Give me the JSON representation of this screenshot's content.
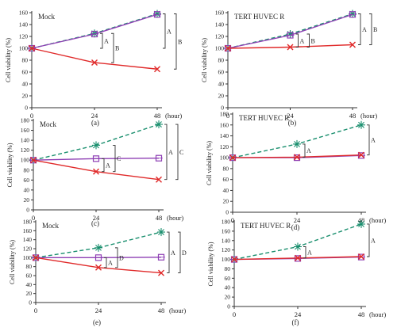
{
  "chart_data": [
    {
      "type": "line",
      "panel_letter": "(a)",
      "title": "Mock",
      "ylabel": "Cell viability (%)",
      "x_unit": "(hour)",
      "x": [
        0,
        24,
        48
      ],
      "ylim": [
        0,
        160
      ],
      "yticks": [
        0,
        20,
        40,
        60,
        80,
        100,
        120,
        140,
        160
      ],
      "series": [
        {
          "color": "#1a8f6e",
          "dash": "5,3",
          "marker": "star",
          "values": [
            100,
            125,
            158
          ]
        },
        {
          "color": "#8e3fb4",
          "dash": "",
          "marker": "square",
          "values": [
            100,
            124,
            157
          ]
        },
        {
          "color": "#e02a2a",
          "dash": "",
          "marker": "x",
          "values": [
            100,
            76,
            65
          ]
        }
      ],
      "annotations": [
        {
          "label": "A",
          "at_x": 24,
          "from": 125,
          "to": 100
        },
        {
          "label": "B",
          "at_x": 24,
          "from": 125,
          "to": 76
        },
        {
          "label": "A",
          "at_x": 48,
          "from": 158,
          "to": 100
        },
        {
          "label": "B",
          "at_x": 48,
          "from": 158,
          "to": 65
        }
      ]
    },
    {
      "type": "line",
      "panel_letter": "(b)",
      "title": "TERT HUVEC R",
      "ylabel": "Cell viability (%)",
      "x_unit": "(hour)",
      "x": [
        0,
        24,
        48
      ],
      "ylim": [
        0,
        160
      ],
      "yticks": [
        0,
        20,
        40,
        60,
        80,
        100,
        120,
        140,
        160
      ],
      "series": [
        {
          "color": "#1a8f6e",
          "dash": "5,3",
          "marker": "star",
          "values": [
            100,
            124,
            158
          ]
        },
        {
          "color": "#8e3fb4",
          "dash": "",
          "marker": "square",
          "values": [
            100,
            122,
            157
          ]
        },
        {
          "color": "#e02a2a",
          "dash": "",
          "marker": "x",
          "values": [
            100,
            102,
            106
          ]
        }
      ],
      "annotations": [
        {
          "label": "A",
          "at_x": 24,
          "from": 124,
          "to": 102
        },
        {
          "label": "B",
          "at_x": 24,
          "from": 124,
          "to": 102
        },
        {
          "label": "A",
          "at_x": 48,
          "from": 158,
          "to": 106
        },
        {
          "label": "B",
          "at_x": 48,
          "from": 158,
          "to": 106
        }
      ]
    },
    {
      "type": "line",
      "panel_letter": "(c)",
      "title": "Mock",
      "ylabel": "Cell viability (%)",
      "x_unit": "(hour)",
      "x": [
        0,
        24,
        48
      ],
      "ylim": [
        0,
        180
      ],
      "yticks": [
        0,
        20,
        40,
        60,
        80,
        100,
        120,
        140,
        160,
        180
      ],
      "series": [
        {
          "color": "#1a8f6e",
          "dash": "5,3",
          "marker": "star",
          "values": [
            100,
            130,
            172
          ]
        },
        {
          "color": "#8e3fb4",
          "dash": "",
          "marker": "square",
          "values": [
            100,
            103,
            104
          ]
        },
        {
          "color": "#e02a2a",
          "dash": "",
          "marker": "x",
          "values": [
            100,
            77,
            61
          ]
        }
      ],
      "annotations": [
        {
          "label": "A",
          "at_x": 24,
          "from": 103,
          "to": 77
        },
        {
          "label": "C",
          "at_x": 24,
          "from": 130,
          "to": 77
        },
        {
          "label": "A",
          "at_x": 48,
          "from": 172,
          "to": 61
        },
        {
          "label": "C",
          "at_x": 48,
          "from": 172,
          "to": 61
        }
      ]
    },
    {
      "type": "line",
      "panel_letter": "(d)",
      "title": "TERT HUVEC R",
      "ylabel": "Cell viability (%)",
      "x_unit": "(hour)",
      "x": [
        0,
        24,
        48
      ],
      "ylim": [
        0,
        180
      ],
      "yticks": [
        0,
        20,
        40,
        60,
        80,
        100,
        120,
        140,
        160,
        180
      ],
      "series": [
        {
          "color": "#1a8f6e",
          "dash": "5,3",
          "marker": "star",
          "values": [
            100,
            125,
            160
          ]
        },
        {
          "color": "#8e3fb4",
          "dash": "",
          "marker": "square",
          "values": [
            100,
            100,
            104
          ]
        },
        {
          "color": "#e02a2a",
          "dash": "",
          "marker": "x",
          "values": [
            100,
            101,
            105
          ]
        }
      ],
      "annotations": [
        {
          "label": "A",
          "at_x": 24,
          "from": 125,
          "to": 101
        },
        {
          "label": "A",
          "at_x": 48,
          "from": 160,
          "to": 105
        }
      ]
    },
    {
      "type": "line",
      "panel_letter": "(e)",
      "title": "Mock",
      "ylabel": "Cell viability (%)",
      "x_unit": "(hour)",
      "x": [
        0,
        24,
        48
      ],
      "ylim": [
        0,
        180
      ],
      "yticks": [
        0,
        20,
        40,
        60,
        80,
        100,
        120,
        140,
        160,
        180
      ],
      "series": [
        {
          "color": "#1a8f6e",
          "dash": "5,3",
          "marker": "star",
          "values": [
            100,
            122,
            157
          ]
        },
        {
          "color": "#8e3fb4",
          "dash": "",
          "marker": "square",
          "values": [
            100,
            100,
            101
          ]
        },
        {
          "color": "#e02a2a",
          "dash": "",
          "marker": "x",
          "values": [
            100,
            78,
            66
          ]
        }
      ],
      "annotations": [
        {
          "label": "A",
          "at_x": 24,
          "from": 100,
          "to": 78
        },
        {
          "label": "D",
          "at_x": 24,
          "from": 122,
          "to": 78
        },
        {
          "label": "A",
          "at_x": 48,
          "from": 157,
          "to": 66
        },
        {
          "label": "D",
          "at_x": 48,
          "from": 157,
          "to": 66
        }
      ]
    },
    {
      "type": "line",
      "panel_letter": "(f)",
      "title": "TERT HUVEC R",
      "ylabel": "Cell viability (%)",
      "x_unit": "(hour)",
      "x": [
        0,
        24,
        48
      ],
      "ylim": [
        0,
        180
      ],
      "yticks": [
        0,
        20,
        40,
        60,
        80,
        100,
        120,
        140,
        160,
        180
      ],
      "series": [
        {
          "color": "#1a8f6e",
          "dash": "5,3",
          "marker": "star",
          "values": [
            100,
            127,
            175
          ]
        },
        {
          "color": "#8e3fb4",
          "dash": "",
          "marker": "square",
          "values": [
            100,
            102,
            105
          ]
        },
        {
          "color": "#e02a2a",
          "dash": "",
          "marker": "x",
          "values": [
            100,
            103,
            106
          ]
        }
      ],
      "annotations": [
        {
          "label": "A",
          "at_x": 24,
          "from": 127,
          "to": 103
        },
        {
          "label": "A",
          "at_x": 48,
          "from": 175,
          "to": 106
        }
      ]
    }
  ]
}
